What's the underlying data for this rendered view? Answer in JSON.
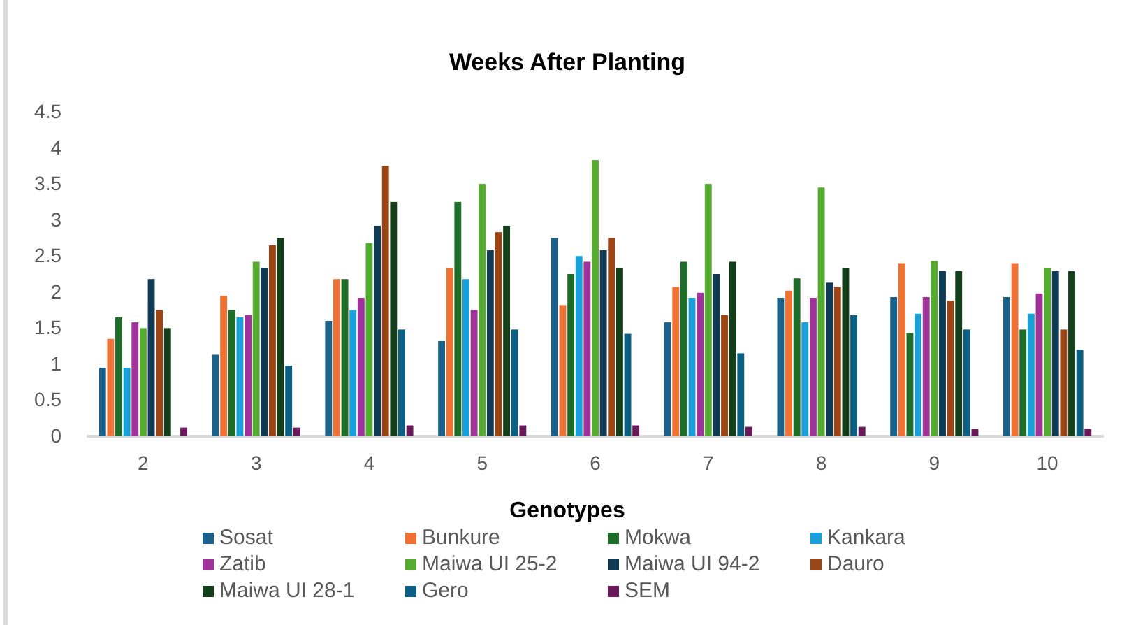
{
  "chart_data": {
    "type": "bar",
    "title": "Weeks After Planting",
    "xlabel": "Genotypes",
    "categories": [
      "2",
      "3",
      "4",
      "5",
      "6",
      "7",
      "8",
      "9",
      "10"
    ],
    "ylim": [
      0,
      4.5
    ],
    "yticks": [
      0,
      0.5,
      1,
      1.5,
      2,
      2.5,
      3,
      3.5,
      4,
      4.5
    ],
    "grid": false,
    "legend": "bottom",
    "series": [
      {
        "name": "Sosat",
        "color": "#1b6189",
        "values": [
          0.95,
          1.13,
          1.6,
          1.32,
          2.75,
          1.58,
          1.92,
          1.93,
          1.93
        ]
      },
      {
        "name": "Bunkure",
        "color": "#ed7233",
        "values": [
          1.35,
          1.95,
          2.18,
          2.33,
          1.82,
          2.07,
          2.02,
          2.4,
          2.4
        ]
      },
      {
        "name": "Mokwa",
        "color": "#1e6e2a",
        "values": [
          1.65,
          1.75,
          2.18,
          3.25,
          2.25,
          2.42,
          2.19,
          1.43,
          1.48
        ]
      },
      {
        "name": "Kankara",
        "color": "#1aa0d8",
        "values": [
          0.95,
          1.65,
          1.75,
          2.18,
          2.5,
          1.92,
          1.58,
          1.7,
          1.7
        ]
      },
      {
        "name": "Zatib",
        "color": "#a0339a",
        "values": [
          1.58,
          1.68,
          1.92,
          1.75,
          2.42,
          1.99,
          1.92,
          1.93,
          1.98
        ]
      },
      {
        "name": "Maiwa UI 25-2",
        "color": "#55ab30",
        "values": [
          1.5,
          2.42,
          2.68,
          3.5,
          3.83,
          3.5,
          3.45,
          2.43,
          2.33
        ]
      },
      {
        "name": "Maiwa UI 94-2",
        "color": "#0f3b55",
        "values": [
          2.18,
          2.33,
          2.92,
          2.58,
          2.58,
          2.25,
          2.13,
          2.29,
          2.29
        ]
      },
      {
        "name": "Dauro",
        "color": "#9b4515",
        "values": [
          1.75,
          2.65,
          3.75,
          2.83,
          2.75,
          1.68,
          2.07,
          1.88,
          1.48
        ]
      },
      {
        "name": "Maiwa UI 28-1",
        "color": "#133f1a",
        "values": [
          1.5,
          2.75,
          3.25,
          2.92,
          2.33,
          2.42,
          2.33,
          2.29,
          2.29
        ]
      },
      {
        "name": "Gero",
        "color": "#0a5f82",
        "values": [
          null,
          0.98,
          1.48,
          1.48,
          1.42,
          1.15,
          1.68,
          1.48,
          1.2
        ]
      },
      {
        "name": "SEM",
        "color": "#6a1a5a",
        "values": [
          0.12,
          0.12,
          0.15,
          0.15,
          0.15,
          0.13,
          0.13,
          0.1,
          0.1
        ]
      }
    ]
  }
}
